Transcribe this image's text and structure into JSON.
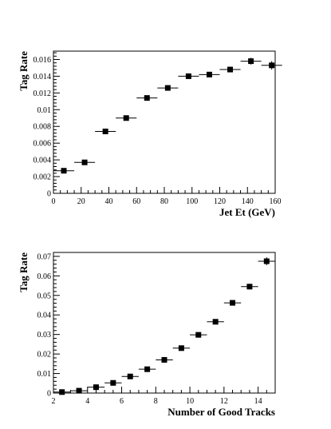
{
  "chart_data": [
    {
      "type": "scatter",
      "xlabel": "Jet Et (GeV)",
      "ylabel": "Tag Rate",
      "xlim": [
        0,
        160
      ],
      "ylim": [
        0,
        0.017
      ],
      "x_ticks": [
        0,
        20,
        40,
        60,
        80,
        100,
        120,
        140,
        160
      ],
      "x_tick_labels": [
        "0",
        "20",
        "40",
        "60",
        "80",
        "100",
        "120",
        "140",
        "160"
      ],
      "y_ticks": [
        0,
        0.002,
        0.004,
        0.006,
        0.008,
        0.01,
        0.012,
        0.014,
        0.016
      ],
      "y_tick_labels": [
        "0",
        "0.002",
        "0.004",
        "0.006",
        "0.008",
        "0.01",
        "0.012",
        "0.014",
        "0.016"
      ],
      "grid": false,
      "series": [
        {
          "x": [
            7.5,
            22.5,
            37.5,
            52.5,
            67.5,
            82.5,
            97.5,
            112.5,
            127.5,
            142.5,
            157.5
          ],
          "y": [
            0.0027,
            0.0037,
            0.0074,
            0.009,
            0.0114,
            0.0126,
            0.014,
            0.0142,
            0.0148,
            0.0158,
            0.0153
          ],
          "x_err": [
            7.5,
            7.5,
            7.5,
            7.5,
            7.5,
            7.5,
            7.5,
            7.5,
            7.5,
            7.5,
            7.5
          ],
          "y_err": [
            0.0001,
            0.0001,
            0.0002,
            0.0002,
            0.0002,
            0.0002,
            0.0002,
            0.0002,
            0.0003,
            0.0004,
            0.0005
          ]
        }
      ]
    },
    {
      "type": "scatter",
      "xlabel": "Number of Good Tracks",
      "ylabel": "Tag Rate",
      "xlim": [
        2,
        15
      ],
      "ylim": [
        0,
        0.072
      ],
      "x_ticks": [
        2,
        4,
        6,
        8,
        10,
        12,
        14
      ],
      "x_tick_labels": [
        "2",
        "4",
        "6",
        "8",
        "10",
        "12",
        "14"
      ],
      "y_ticks": [
        0,
        0.01,
        0.02,
        0.03,
        0.04,
        0.05,
        0.06,
        0.07
      ],
      "y_tick_labels": [
        "0",
        "0.01",
        "0.02",
        "0.03",
        "0.04",
        "0.05",
        "0.06",
        "0.07"
      ],
      "grid": false,
      "series": [
        {
          "x": [
            2.5,
            3.5,
            4.5,
            5.5,
            6.5,
            7.5,
            8.5,
            9.5,
            10.5,
            11.5,
            12.5,
            13.5,
            14.5
          ],
          "y": [
            0.0005,
            0.0012,
            0.003,
            0.0052,
            0.0085,
            0.0122,
            0.017,
            0.023,
            0.0298,
            0.0365,
            0.0462,
            0.0545,
            0.0675
          ],
          "x_err": [
            0.5,
            0.5,
            0.5,
            0.5,
            0.5,
            0.5,
            0.5,
            0.5,
            0.5,
            0.5,
            0.5,
            0.5,
            0.5
          ],
          "y_err": [
            0.0001,
            0.0001,
            0.0002,
            0.0002,
            0.0003,
            0.0003,
            0.0004,
            0.0005,
            0.0006,
            0.0008,
            0.001,
            0.0014,
            0.002
          ]
        }
      ]
    }
  ]
}
